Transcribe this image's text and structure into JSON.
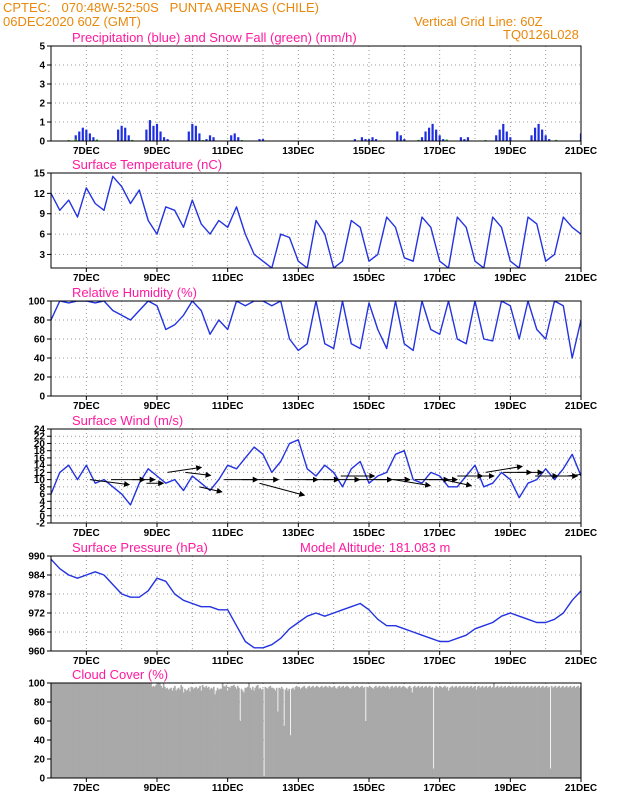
{
  "header": {
    "source_line": "CPTEC:   070:48W-52:50S   PUNTA ARENAS (CHILE)",
    "date_line": "06DEC2020 60Z (GMT)",
    "grid_line": "Vertical Grid Line: 60Z",
    "code": "TQ0126L028"
  },
  "chart_data": [
    {
      "type": "bar",
      "title": "Precipitation (blue) and Snow Fall (green) (mm/h)",
      "ylim": [
        0,
        5
      ],
      "yticks": [
        0,
        1,
        2,
        3,
        4,
        5
      ],
      "xticks": [
        "7DEC",
        "9DEC",
        "11DEC",
        "13DEC",
        "15DEC",
        "17DEC",
        "19DEC",
        "21DEC"
      ],
      "series": [
        {
          "name": "Precipitation",
          "color": "#1f2fe0",
          "x": [
            6.7,
            6.8,
            6.9,
            7.0,
            7.1,
            7.2,
            7.9,
            8.0,
            8.1,
            8.2,
            8.7,
            8.8,
            8.9,
            9.0,
            9.1,
            9.2,
            9.3,
            9.9,
            10.0,
            10.1,
            10.2,
            10.4,
            10.5,
            10.6,
            11.1,
            11.2,
            11.3,
            11.9,
            12.0,
            14.6,
            14.8,
            14.9,
            15.0,
            15.1,
            15.2,
            15.8,
            15.9,
            16.0,
            16.5,
            16.6,
            16.7,
            16.8,
            16.9,
            17.0,
            17.1,
            17.6,
            17.7,
            17.8,
            18.6,
            18.7,
            18.8,
            18.9,
            19.0,
            19.6,
            19.7,
            19.8,
            19.9,
            20.0,
            20.1,
            21.0
          ],
          "values": [
            0.3,
            0.5,
            0.7,
            0.6,
            0.4,
            0.2,
            0.6,
            0.8,
            0.7,
            0.3,
            0.6,
            1.1,
            0.8,
            0.9,
            0.5,
            0.2,
            0.1,
            0.5,
            0.9,
            0.8,
            0.4,
            0.1,
            0.3,
            0.2,
            0.3,
            0.4,
            0.2,
            0.1,
            0.1,
            0.1,
            0.2,
            0.1,
            0.1,
            0.2,
            0.1,
            0.5,
            0.3,
            0.1,
            0.2,
            0.5,
            0.7,
            0.9,
            0.6,
            0.3,
            0.1,
            0.2,
            0.1,
            0.2,
            0.3,
            0.6,
            0.9,
            0.5,
            0.2,
            0.3,
            0.7,
            0.9,
            0.6,
            0.3,
            0.1,
            0.4
          ]
        },
        {
          "name": "Snow Fall",
          "color": "#21b02a",
          "x": [
            6.5,
            6.7,
            7.3,
            8.3,
            10.3,
            11.4,
            16.4,
            17.2,
            18.3,
            20.3
          ],
          "values": [
            0.05,
            0.1,
            0.08,
            0.06,
            0.05,
            0.05,
            0.06,
            0.08,
            0.05,
            0.06
          ]
        }
      ]
    },
    {
      "type": "line",
      "title": "Surface Temperature (nC)",
      "ylim": [
        1,
        15
      ],
      "yticks": [
        3,
        6,
        9,
        12,
        15
      ],
      "xticks": [
        "7DEC",
        "9DEC",
        "11DEC",
        "13DEC",
        "15DEC",
        "17DEC",
        "19DEC",
        "21DEC"
      ],
      "x": [
        6,
        6.25,
        6.5,
        6.75,
        7,
        7.25,
        7.5,
        7.75,
        8,
        8.25,
        8.5,
        8.75,
        9,
        9.25,
        9.5,
        9.75,
        10,
        10.25,
        10.5,
        10.75,
        11,
        11.25,
        11.5,
        11.75,
        12,
        12.25,
        12.5,
        12.75,
        13,
        13.25,
        13.5,
        13.75,
        14,
        14.25,
        14.5,
        14.75,
        15,
        15.25,
        15.5,
        15.75,
        16,
        16.25,
        16.5,
        16.75,
        17,
        17.25,
        17.5,
        17.75,
        18,
        18.25,
        18.5,
        18.75,
        19,
        19.25,
        19.5,
        19.75,
        20,
        20.25,
        20.5,
        20.75,
        21
      ],
      "values": [
        12,
        9.5,
        11,
        8.5,
        12.8,
        10.5,
        9.5,
        14.5,
        13,
        10.5,
        12.5,
        8,
        6,
        10,
        9.5,
        7,
        11,
        7.5,
        6,
        8,
        7,
        10,
        6,
        3,
        2,
        1,
        6,
        5.5,
        2,
        1,
        8,
        6,
        1,
        2,
        8,
        7,
        2,
        3,
        8.5,
        7,
        2.5,
        2,
        8.5,
        7,
        2,
        1,
        8.5,
        7,
        2,
        1,
        8.5,
        7,
        2,
        1,
        8.5,
        7.5,
        2,
        3,
        8.5,
        7,
        6
      ]
    },
    {
      "type": "line",
      "title": "Relative Humidity (%)",
      "ylim": [
        0,
        100
      ],
      "yticks": [
        0,
        20,
        40,
        60,
        80,
        100
      ],
      "xticks": [
        "7DEC",
        "9DEC",
        "11DEC",
        "13DEC",
        "15DEC",
        "17DEC",
        "19DEC",
        "21DEC"
      ],
      "x": [
        6,
        6.25,
        6.5,
        6.75,
        7,
        7.25,
        7.5,
        7.75,
        8,
        8.25,
        8.5,
        8.75,
        9,
        9.25,
        9.5,
        9.75,
        10,
        10.25,
        10.5,
        10.75,
        11,
        11.25,
        11.5,
        11.75,
        12,
        12.25,
        12.5,
        12.75,
        13,
        13.25,
        13.5,
        13.75,
        14,
        14.25,
        14.5,
        14.75,
        15,
        15.25,
        15.5,
        15.75,
        16,
        16.25,
        16.5,
        16.75,
        17,
        17.25,
        17.5,
        17.75,
        18,
        18.25,
        18.5,
        18.75,
        19,
        19.25,
        19.5,
        19.75,
        20,
        20.25,
        20.5,
        20.75,
        21
      ],
      "values": [
        80,
        100,
        98,
        100,
        100,
        98,
        100,
        90,
        85,
        80,
        90,
        100,
        95,
        70,
        75,
        85,
        100,
        90,
        65,
        80,
        70,
        100,
        95,
        100,
        100,
        95,
        100,
        60,
        48,
        55,
        100,
        55,
        50,
        100,
        55,
        50,
        98,
        70,
        50,
        100,
        55,
        48,
        100,
        70,
        65,
        100,
        60,
        55,
        100,
        60,
        58,
        100,
        95,
        60,
        100,
        70,
        60,
        100,
        95,
        40,
        80
      ]
    },
    {
      "type": "line",
      "title": "Surface Wind (m/s)",
      "ylim": [
        -2,
        24
      ],
      "yticks": [
        -2,
        0,
        2,
        4,
        6,
        8,
        10,
        12,
        14,
        16,
        18,
        20,
        22,
        24
      ],
      "xticks": [
        "7DEC",
        "9DEC",
        "11DEC",
        "13DEC",
        "15DEC",
        "17DEC",
        "19DEC",
        "21DEC"
      ],
      "x": [
        6,
        6.25,
        6.5,
        6.75,
        7,
        7.25,
        7.5,
        7.75,
        8,
        8.25,
        8.5,
        8.75,
        9,
        9.25,
        9.5,
        9.75,
        10,
        10.25,
        10.5,
        10.75,
        11,
        11.25,
        11.5,
        11.75,
        12,
        12.25,
        12.5,
        12.75,
        13,
        13.25,
        13.5,
        13.75,
        14,
        14.25,
        14.5,
        14.75,
        15,
        15.25,
        15.5,
        15.75,
        16,
        16.25,
        16.5,
        16.75,
        17,
        17.25,
        17.5,
        17.75,
        18,
        18.25,
        18.5,
        18.75,
        19,
        19.25,
        19.5,
        19.75,
        20,
        20.25,
        20.5,
        20.75,
        21
      ],
      "values": [
        6,
        12,
        14,
        10,
        14,
        9,
        10,
        8,
        6,
        3,
        9,
        13,
        11,
        9,
        10,
        7,
        11,
        9,
        7,
        10,
        14,
        13,
        16,
        19,
        17,
        12,
        15,
        20,
        21,
        13,
        11,
        14,
        12,
        8,
        13,
        15,
        9,
        11,
        12,
        17,
        18,
        10,
        9,
        12,
        11,
        8,
        8,
        11,
        14,
        8,
        9,
        12,
        10,
        5,
        9,
        10,
        13,
        10,
        13,
        17,
        11
      ]
    },
    {
      "type": "line",
      "title": "Surface Pressure (hPa)",
      "annotation": "Model Altitude: 181.083 m",
      "ylim": [
        960,
        990
      ],
      "yticks": [
        960,
        966,
        972,
        978,
        984,
        990
      ],
      "xticks": [
        "7DEC",
        "9DEC",
        "11DEC",
        "13DEC",
        "15DEC",
        "17DEC",
        "19DEC",
        "21DEC"
      ],
      "x": [
        6,
        6.25,
        6.5,
        6.75,
        7,
        7.25,
        7.5,
        7.75,
        8,
        8.25,
        8.5,
        8.75,
        9,
        9.25,
        9.5,
        9.75,
        10,
        10.25,
        10.5,
        10.75,
        11,
        11.25,
        11.5,
        11.75,
        12,
        12.25,
        12.5,
        12.75,
        13,
        13.25,
        13.5,
        13.75,
        14,
        14.25,
        14.5,
        14.75,
        15,
        15.25,
        15.5,
        15.75,
        16,
        16.25,
        16.5,
        16.75,
        17,
        17.25,
        17.5,
        17.75,
        18,
        18.25,
        18.5,
        18.75,
        19,
        19.25,
        19.5,
        19.75,
        20,
        20.25,
        20.5,
        20.75,
        21
      ],
      "values": [
        989,
        986,
        984,
        983,
        984,
        985,
        984,
        981,
        978,
        977,
        977,
        979,
        983,
        982,
        978,
        976,
        975,
        974,
        974,
        973,
        973,
        968,
        963,
        961,
        961,
        962,
        964,
        967,
        969,
        971,
        972,
        971,
        972,
        973,
        974,
        975,
        973,
        970,
        968,
        968,
        967,
        966,
        965,
        964,
        963,
        963,
        964,
        965,
        967,
        968,
        969,
        971,
        972,
        971,
        970,
        969,
        969,
        970,
        972,
        976,
        979
      ]
    },
    {
      "type": "bar",
      "title": "Cloud Cover (%)",
      "ylim": [
        0,
        100
      ],
      "yticks": [
        0,
        20,
        40,
        60,
        80,
        100
      ],
      "xticks": [
        "7DEC",
        "9DEC",
        "11DEC",
        "13DEC",
        "15DEC",
        "17DEC",
        "19DEC",
        "21DEC"
      ],
      "color": "#a9a9a9",
      "x_range": [
        6,
        21
      ],
      "values": [
        100,
        100,
        100,
        100,
        100,
        100,
        100,
        100,
        100,
        100,
        100,
        100,
        100,
        100,
        100,
        100,
        100,
        100,
        100,
        100,
        100,
        100,
        100,
        100,
        100,
        100,
        100,
        100,
        100,
        100,
        100,
        100,
        100,
        100,
        100,
        100,
        100,
        100,
        100,
        100,
        100,
        100,
        100,
        100,
        100,
        100,
        100,
        100,
        100,
        100,
        100,
        100,
        100,
        100,
        100,
        100,
        100,
        100,
        100,
        100,
        100,
        100,
        100,
        100,
        100,
        100,
        100,
        100,
        100,
        100,
        100,
        100,
        100,
        100,
        100,
        100,
        100,
        100,
        100,
        100,
        96,
        97,
        96,
        98,
        100,
        100,
        100,
        97,
        95,
        100,
        96,
        94,
        95,
        93,
        94,
        95,
        92,
        95,
        97,
        92,
        94,
        95,
        93,
        98,
        96,
        90,
        94,
        92,
        93,
        95,
        91,
        96,
        95,
        94,
        95,
        96,
        94,
        95,
        97,
        92,
        98,
        96,
        95,
        97,
        95,
        96,
        93,
        95,
        94,
        96,
        88,
        92,
        95,
        93,
        94,
        94,
        100,
        97,
        96,
        98,
        92,
        96,
        95,
        97,
        97,
        98,
        96,
        94,
        97,
        95,
        60,
        94,
        92,
        90,
        95,
        95,
        96,
        100,
        95,
        93,
        96,
        92,
        95,
        97,
        98,
        94,
        95,
        93,
        94,
        2,
        96,
        95,
        94,
        96,
        97,
        95,
        95,
        94,
        92,
        95,
        70,
        95,
        94,
        96,
        94,
        55,
        93,
        95,
        92,
        94,
        45,
        94,
        95,
        93,
        96,
        97,
        95,
        96,
        94,
        95,
        96,
        97,
        95,
        94,
        96,
        97,
        95,
        96,
        97,
        95,
        96,
        97,
        96,
        95,
        96,
        97,
        95,
        96,
        97,
        96,
        95,
        97,
        96,
        95,
        96,
        97,
        95,
        94,
        96,
        97,
        95,
        96,
        97,
        95,
        96,
        97,
        96,
        95,
        94,
        96,
        97,
        95,
        96,
        97,
        96,
        95,
        96,
        97,
        95,
        96,
        60,
        96,
        95,
        97,
        96,
        95,
        94,
        96,
        97,
        95,
        96,
        97,
        95,
        96,
        97,
        96,
        95,
        97,
        96,
        94,
        96,
        97,
        95,
        96,
        97,
        95,
        96,
        97,
        95,
        96,
        97,
        96,
        95,
        94,
        96,
        97,
        95,
        90,
        96,
        97,
        95,
        96,
        97,
        95,
        96,
        97,
        95,
        96,
        97,
        95,
        96,
        97,
        95,
        96,
        10,
        95,
        97,
        96,
        95,
        97,
        96,
        95,
        96,
        97,
        95,
        96,
        92,
        95,
        96,
        97,
        95,
        96,
        97,
        95,
        96,
        97,
        95,
        96,
        97,
        95,
        96,
        97,
        95,
        96,
        97,
        95,
        96,
        97,
        93,
        96,
        97,
        95,
        96,
        97,
        95,
        96,
        97,
        95,
        96,
        97,
        95,
        96,
        100,
        95,
        96,
        97,
        95,
        96,
        97,
        95,
        96,
        97,
        95,
        96,
        97,
        95,
        96,
        97,
        95,
        96,
        97,
        95,
        96,
        97,
        95,
        96,
        97,
        95,
        96,
        97,
        95,
        96,
        97,
        95,
        96,
        97,
        95,
        96,
        97,
        95,
        96,
        97,
        95,
        96,
        97,
        95,
        96,
        10,
        97,
        95,
        96,
        97,
        95,
        96,
        97,
        95,
        96,
        97,
        95,
        96,
        97,
        95,
        96,
        97,
        95,
        96,
        97,
        95,
        96,
        97,
        95,
        96
      ]
    }
  ]
}
